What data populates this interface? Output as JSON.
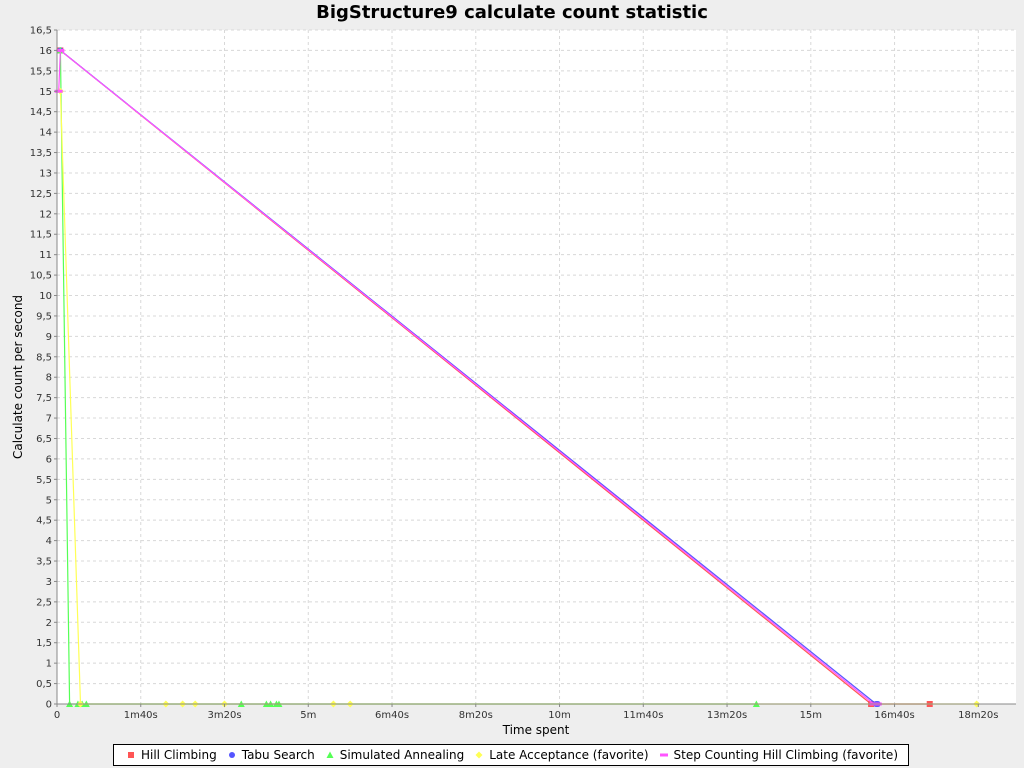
{
  "chart_data": {
    "type": "line",
    "title": "BigStructure9 calculate count statistic",
    "xlabel": "Time spent",
    "ylabel": "Calculate count per second",
    "xlim": [
      0,
      1145
    ],
    "ylim": [
      0,
      16.5
    ],
    "x_ticks": [
      {
        "value": 0,
        "label": "0"
      },
      {
        "value": 100,
        "label": "1m40s"
      },
      {
        "value": 200,
        "label": "3m20s"
      },
      {
        "value": 300,
        "label": "5m"
      },
      {
        "value": 400,
        "label": "6m40s"
      },
      {
        "value": 500,
        "label": "8m20s"
      },
      {
        "value": 600,
        "label": "10m"
      },
      {
        "value": 700,
        "label": "11m40s"
      },
      {
        "value": 800,
        "label": "13m20s"
      },
      {
        "value": 900,
        "label": "15m"
      },
      {
        "value": 1000,
        "label": "16m40s"
      },
      {
        "value": 1100,
        "label": "18m20s"
      }
    ],
    "y_ticks": [
      {
        "value": 0,
        "label": "0"
      },
      {
        "value": 0.5,
        "label": "0,5"
      },
      {
        "value": 1,
        "label": "1"
      },
      {
        "value": 1.5,
        "label": "1,5"
      },
      {
        "value": 2,
        "label": "2"
      },
      {
        "value": 2.5,
        "label": "2,5"
      },
      {
        "value": 3,
        "label": "3"
      },
      {
        "value": 3.5,
        "label": "3,5"
      },
      {
        "value": 4,
        "label": "4"
      },
      {
        "value": 4.5,
        "label": "4,5"
      },
      {
        "value": 5,
        "label": "5"
      },
      {
        "value": 5.5,
        "label": "5,5"
      },
      {
        "value": 6,
        "label": "6"
      },
      {
        "value": 6.5,
        "label": "6,5"
      },
      {
        "value": 7,
        "label": "7"
      },
      {
        "value": 7.5,
        "label": "7,5"
      },
      {
        "value": 8,
        "label": "8"
      },
      {
        "value": 8.5,
        "label": "8,5"
      },
      {
        "value": 9,
        "label": "9"
      },
      {
        "value": 9.5,
        "label": "9,5"
      },
      {
        "value": 10,
        "label": "10"
      },
      {
        "value": 10.5,
        "label": "10,5"
      },
      {
        "value": 11,
        "label": "11"
      },
      {
        "value": 11.5,
        "label": "11,5"
      },
      {
        "value": 12,
        "label": "12"
      },
      {
        "value": 12.5,
        "label": "12,5"
      },
      {
        "value": 13,
        "label": "13"
      },
      {
        "value": 13.5,
        "label": "13,5"
      },
      {
        "value": 14,
        "label": "14"
      },
      {
        "value": 14.5,
        "label": "14,5"
      },
      {
        "value": 15,
        "label": "15"
      },
      {
        "value": 15.5,
        "label": "15,5"
      },
      {
        "value": 16,
        "label": "16"
      },
      {
        "value": 16.5,
        "label": "16,5"
      }
    ],
    "grid": true,
    "legend_position": "bottom",
    "series": [
      {
        "name": "Hill Climbing",
        "color": "#ff5555",
        "marker": "square",
        "points": [
          [
            4,
            16
          ],
          [
            972,
            0
          ],
          [
            1042,
            0
          ]
        ]
      },
      {
        "name": "Tabu Search",
        "color": "#5555ff",
        "marker": "circle",
        "points": [
          [
            4,
            16
          ],
          [
            978,
            0
          ],
          [
            980,
            0
          ]
        ]
      },
      {
        "name": "Simulated Annealing",
        "color": "#55ff55",
        "marker": "triangle",
        "points": [
          [
            4,
            16
          ],
          [
            15,
            0
          ],
          [
            25,
            0
          ],
          [
            30,
            0
          ],
          [
            35,
            0
          ],
          [
            220,
            0
          ],
          [
            250,
            0
          ],
          [
            255,
            0
          ],
          [
            262,
            0
          ],
          [
            265,
            0
          ],
          [
            835,
            0
          ]
        ]
      },
      {
        "name": "Late Acceptance (favorite)",
        "color": "#ffff55",
        "marker": "diamond",
        "points": [
          [
            4,
            15
          ],
          [
            28,
            0
          ],
          [
            130,
            0
          ],
          [
            150,
            0
          ],
          [
            165,
            0
          ],
          [
            200,
            0
          ],
          [
            330,
            0
          ],
          [
            350,
            0
          ],
          [
            1098,
            0
          ]
        ]
      },
      {
        "name": "Step Counting Hill Climbing (favorite)",
        "color": "#ff55ff",
        "marker": "dash",
        "points": [
          [
            2,
            15
          ],
          [
            4,
            16
          ],
          [
            975,
            0
          ],
          [
            980,
            0
          ]
        ]
      }
    ]
  }
}
